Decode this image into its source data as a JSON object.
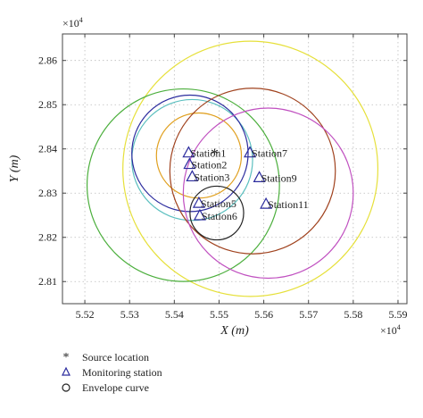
{
  "chart_data": {
    "type": "scatter",
    "xlabel": "X (m)",
    "ylabel": "Y (m)",
    "x_exponent": "×10",
    "x_exponent_power": "4",
    "y_exponent": "×10",
    "y_exponent_power": "4",
    "xlim": [
      5.515,
      5.592
    ],
    "ylim": [
      2.805,
      2.866
    ],
    "x_ticks": [
      {
        "value": 5.52,
        "label": "5.52"
      },
      {
        "value": 5.53,
        "label": "5.53"
      },
      {
        "value": 5.54,
        "label": "5.54"
      },
      {
        "value": 5.55,
        "label": "5.55"
      },
      {
        "value": 5.56,
        "label": "5.56"
      },
      {
        "value": 5.57,
        "label": "5.57"
      },
      {
        "value": 5.58,
        "label": "5.58"
      },
      {
        "value": 5.59,
        "label": "5.59"
      }
    ],
    "y_ticks": [
      {
        "value": 2.81,
        "label": "2.81"
      },
      {
        "value": 2.82,
        "label": "2.82"
      },
      {
        "value": 2.83,
        "label": "2.83"
      },
      {
        "value": 2.84,
        "label": "2.84"
      },
      {
        "value": 2.85,
        "label": "2.85"
      },
      {
        "value": 2.86,
        "label": "2.86"
      }
    ],
    "grid": true,
    "source": {
      "name": "Source location",
      "x": 5.549,
      "y": 2.8388,
      "color": "#e8481c"
    },
    "stations": [
      {
        "label": "Station1",
        "x": 5.5432,
        "y": 2.8392
      },
      {
        "label": "Station2",
        "x": 5.5434,
        "y": 2.8366
      },
      {
        "label": "Station3",
        "x": 5.544,
        "y": 2.8338
      },
      {
        "label": "Station5",
        "x": 5.5455,
        "y": 2.8278
      },
      {
        "label": "Station6",
        "x": 5.5457,
        "y": 2.825
      },
      {
        "label": "Station7",
        "x": 5.5569,
        "y": 2.8392
      },
      {
        "label": "Station9",
        "x": 5.559,
        "y": 2.8336
      },
      {
        "label": "Station11",
        "x": 5.5605,
        "y": 2.8276
      }
    ],
    "envelope_circles": [
      {
        "cx": 5.557,
        "cy": 2.8355,
        "r": 0.0285,
        "color": "#e6e03a"
      },
      {
        "cx": 5.542,
        "cy": 2.8318,
        "r": 0.0215,
        "color": "#4caf3d"
      },
      {
        "cx": 5.544,
        "cy": 2.8375,
        "r": 0.0135,
        "color": "#5bbfbf"
      },
      {
        "cx": 5.5435,
        "cy": 2.839,
        "r": 0.013,
        "color": "#2c2c9e"
      },
      {
        "cx": 5.5455,
        "cy": 2.8385,
        "r": 0.0095,
        "color": "#e0a020"
      },
      {
        "cx": 5.5575,
        "cy": 2.835,
        "r": 0.0185,
        "color": "#a0421e"
      },
      {
        "cx": 5.561,
        "cy": 2.83,
        "r": 0.019,
        "color": "#c050c0"
      },
      {
        "cx": 5.5495,
        "cy": 2.8255,
        "r": 0.006,
        "color": "#222222"
      }
    ],
    "legend": {
      "placement": "bottom-left",
      "entries": [
        {
          "label": "Source location",
          "marker": "asterisk",
          "color": "#e8481c"
        },
        {
          "label": "Monitoring station",
          "marker": "triangle",
          "color": "#2c2c9e"
        },
        {
          "label": "Envelope curve",
          "marker": "circle",
          "color": "#222222"
        }
      ]
    }
  }
}
